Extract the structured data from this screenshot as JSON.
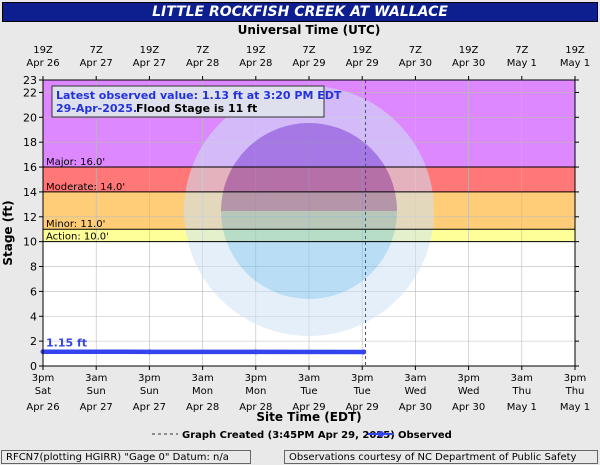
{
  "title": "LITTLE ROCKFISH CREEK AT WALLACE",
  "colors": {
    "title_bg": "#0d1f8f",
    "major": "#dd88ff",
    "moderate": "#ff7777",
    "minor": "#ffcc77",
    "action": "#ffff99",
    "normal": "#ffffff",
    "observed": "#3344ee",
    "annotation_text": "#2233dd",
    "grid": "#bbbbbb"
  },
  "chart_data": {
    "type": "line",
    "title": "LITTLE ROCKFISH CREEK AT WALLACE",
    "ylabel": "Stage (ft)",
    "xlabel": "Site Time (EDT)",
    "top_axis_title": "Universal Time (UTC)",
    "ylim": [
      0,
      23
    ],
    "yticks": [
      0,
      2,
      4,
      6,
      8,
      10,
      12,
      14,
      16,
      18,
      20,
      22,
      23
    ],
    "xlim": [
      "2025-04-26 15:00",
      "2025-05-01 15:00"
    ],
    "grid": true,
    "bottom_ticks": [
      {
        "top": "3pm",
        "mid": "Sat",
        "bot": "Apr 26"
      },
      {
        "top": "3am",
        "mid": "Sun",
        "bot": "Apr 27"
      },
      {
        "top": "3pm",
        "mid": "Sun",
        "bot": "Apr 27"
      },
      {
        "top": "3am",
        "mid": "Mon",
        "bot": "Apr 28"
      },
      {
        "top": "3pm",
        "mid": "Mon",
        "bot": "Apr 28"
      },
      {
        "top": "3am",
        "mid": "Tue",
        "bot": "Apr 29"
      },
      {
        "top": "3pm",
        "mid": "Tue",
        "bot": "Apr 29"
      },
      {
        "top": "3am",
        "mid": "Wed",
        "bot": "Apr 30"
      },
      {
        "top": "3pm",
        "mid": "Wed",
        "bot": "Apr 30"
      },
      {
        "top": "3am",
        "mid": "Thu",
        "bot": "May 1"
      },
      {
        "top": "3pm",
        "mid": "Thu",
        "bot": "May 1"
      }
    ],
    "top_ticks": [
      {
        "top": "19Z",
        "bot": "Apr 26"
      },
      {
        "top": "7Z",
        "bot": "Apr 27"
      },
      {
        "top": "19Z",
        "bot": "Apr 27"
      },
      {
        "top": "7Z",
        "bot": "Apr 28"
      },
      {
        "top": "19Z",
        "bot": "Apr 28"
      },
      {
        "top": "7Z",
        "bot": "Apr 29"
      },
      {
        "top": "19Z",
        "bot": "Apr 29"
      },
      {
        "top": "7Z",
        "bot": "Apr 30"
      },
      {
        "top": "19Z",
        "bot": "Apr 30"
      },
      {
        "top": "7Z",
        "bot": "May 1"
      },
      {
        "top": "19Z",
        "bot": "May 1"
      }
    ],
    "flood_categories": [
      {
        "name": "Major",
        "label": "Major: 16.0'",
        "from": 16,
        "to": 23
      },
      {
        "name": "Moderate",
        "label": "Moderate: 14.0'",
        "from": 14,
        "to": 16
      },
      {
        "name": "Minor",
        "label": "Minor: 11.0'",
        "from": 11,
        "to": 14
      },
      {
        "name": "Action",
        "label": "Action: 10.0'",
        "from": 10,
        "to": 11
      }
    ],
    "series": [
      {
        "name": "Observed",
        "points": [
          {
            "x": "2025-04-26 15:00",
            "y": 1.15
          },
          {
            "x": "2025-04-27 15:00",
            "y": 1.14
          },
          {
            "x": "2025-04-28 15:00",
            "y": 1.14
          },
          {
            "x": "2025-04-29 15:20",
            "y": 1.13
          }
        ]
      }
    ],
    "first_value_label": "1.15 ft",
    "graph_created_time": "2025-04-29 15:45"
  },
  "annotation": {
    "line1": "Latest observed value: 1.13 ft at 3:20 PM EDT",
    "line2a": "29-Apr-2025.",
    "line2b": "Flood Stage is 11 ft"
  },
  "legend": {
    "graph_created": "Graph Created (3:45PM Apr 29, 2025)",
    "observed": "Observed"
  },
  "footer": {
    "left": "RFCN7(plotting HGIRR) \"Gage 0\" Datum: n/a",
    "right": "Observations courtesy of NC Department of Public Safety"
  }
}
